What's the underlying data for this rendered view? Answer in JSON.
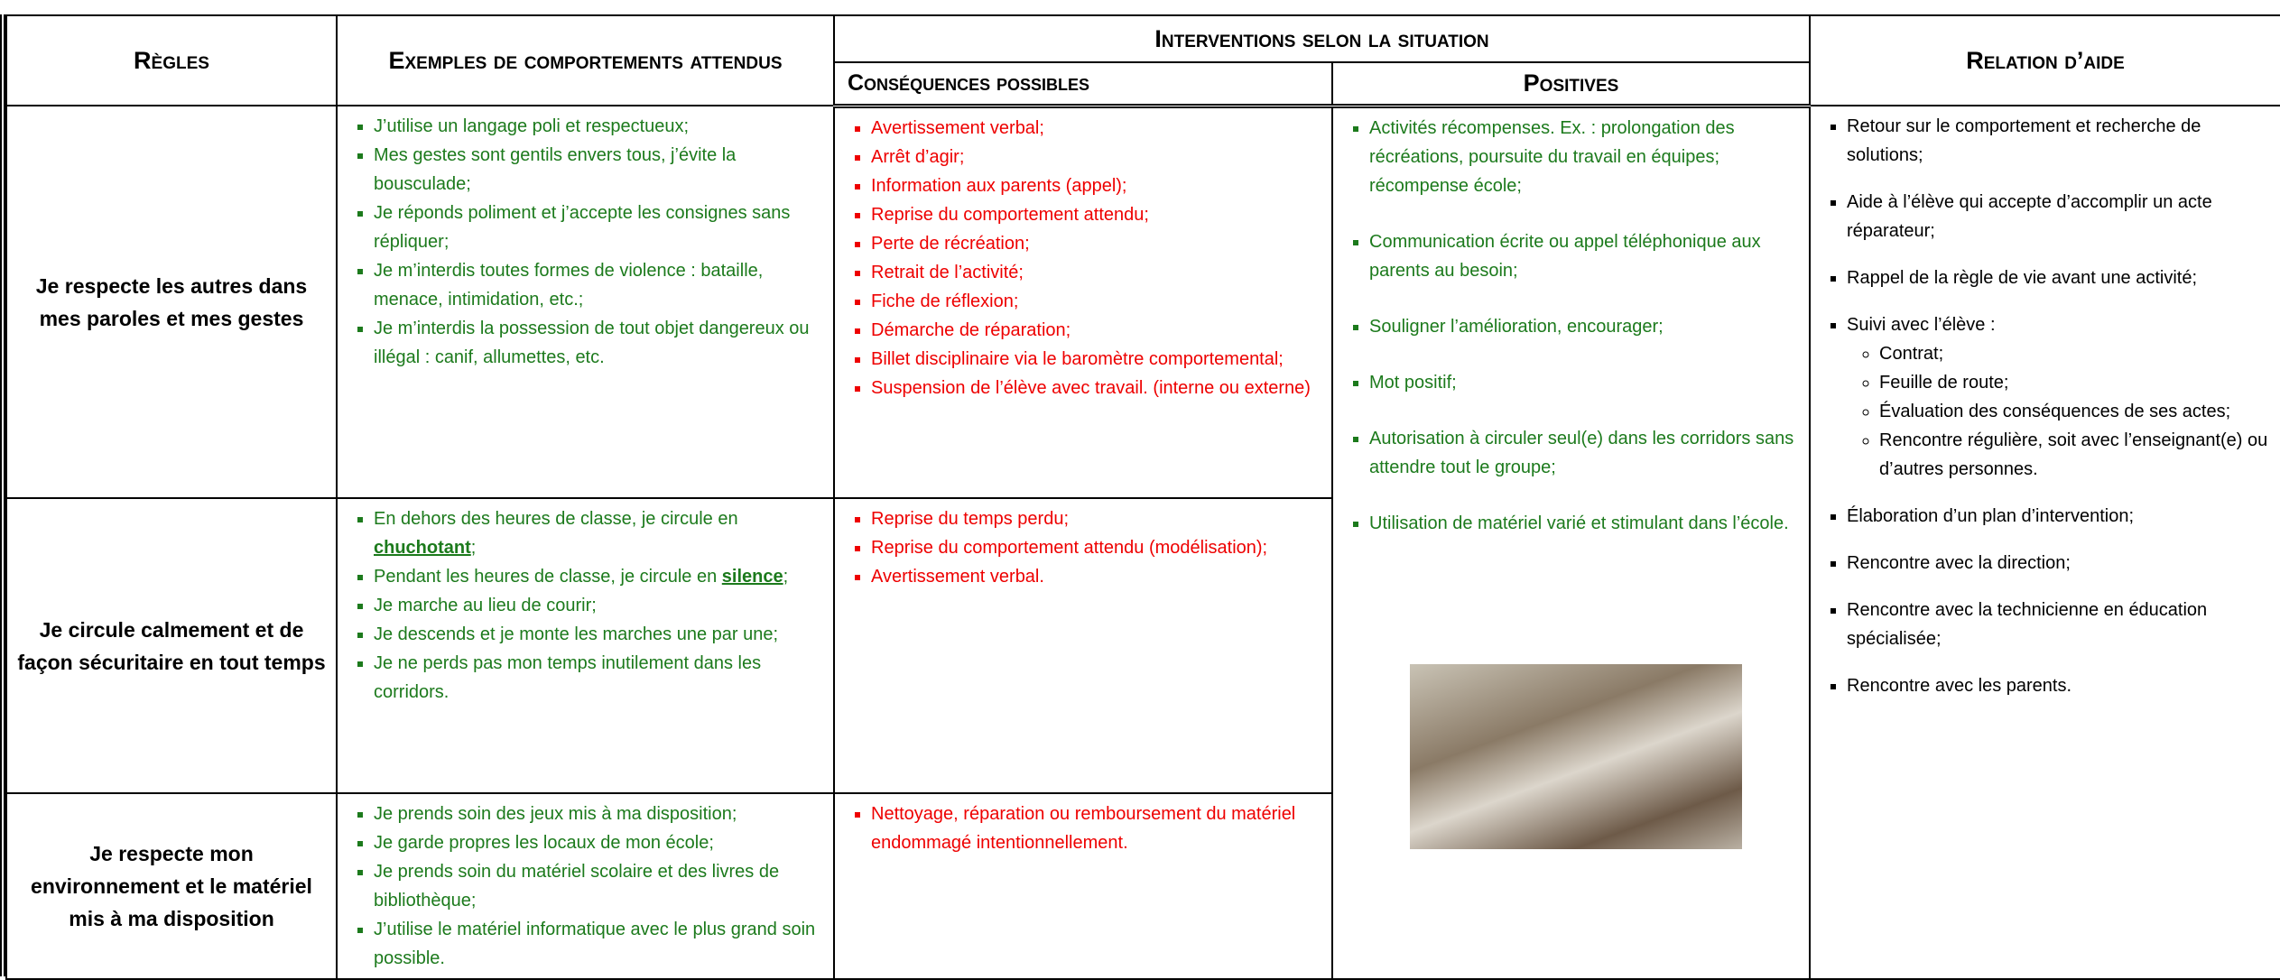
{
  "header": {
    "rules": "Règles",
    "examples": "Exemples de comportements attendus",
    "interventions": "Interventions selon la situation",
    "consequences": "Conséquences possibles",
    "positives": "Positives",
    "help": "Relation d’aide"
  },
  "rows": [
    {
      "rule": "Je respecte les autres dans mes paroles et mes gestes",
      "examples": [
        {
          "text": "J’utilise un langage poli et respectueux;"
        },
        {
          "text": "Mes gestes sont gentils envers tous, j’évite la bousculade;"
        },
        {
          "text": "Je réponds poliment et j’accepte les consignes sans répliquer;"
        },
        {
          "text": "Je m’interdis toutes formes de violence : bataille, menace, intimidation, etc.;"
        },
        {
          "text": "Je m’interdis la possession de tout objet dangereux ou illégal : canif, allumettes, etc."
        }
      ],
      "consequences": [
        "Avertissement verbal;",
        "Arrêt d’agir;",
        "Information aux parents (appel);",
        "Reprise du comportement attendu;",
        "Perte de récréation;",
        "Retrait de l’activité;",
        "Fiche de réflexion;",
        "Démarche de réparation;",
        "Billet disciplinaire via le baromètre comportemental;",
        "Suspension de l’élève avec travail. (interne ou externe)"
      ]
    },
    {
      "rule": "Je circule calmement et de façon sécuritaire en tout temps",
      "examples": [
        {
          "text": "En dehors des heures de classe, je circule en ",
          "strong": "chuchotant",
          "after": ";"
        },
        {
          "text": "Pendant les heures de classe, je circule en ",
          "strong": "silence",
          "after": ";"
        },
        {
          "text": "Je marche au lieu de courir;"
        },
        {
          "text": "Je descends et je monte les marches une par une;"
        },
        {
          "text": "Je ne perds pas mon temps inutilement dans les corridors."
        }
      ],
      "consequences": [
        "Reprise du temps perdu;",
        "Reprise du comportement attendu (modélisation);",
        "Avertissement verbal."
      ]
    },
    {
      "rule": "Je respecte mon environnement et le matériel mis à ma disposition",
      "examples": [
        {
          "text": "Je prends soin des jeux mis à ma disposition;"
        },
        {
          "text": "Je garde propres les locaux de mon école;"
        },
        {
          "text": "Je prends soin du matériel scolaire et des livres de bibliothèque;"
        },
        {
          "text": "J’utilise le matériel informatique avec le plus grand soin possible."
        }
      ],
      "consequences": [
        "Nettoyage, réparation ou remboursement du matériel endommagé intentionnellement."
      ]
    }
  ],
  "positives": [
    "Activités récompenses.  Ex. : prolongation des récréations, poursuite du travail en équipes; récompense école;",
    "Communication écrite ou appel téléphonique aux parents au besoin;",
    "Souligner l’amélioration, encourager;",
    "Mot positif;",
    "Autorisation à circuler seul(e) dans les corridors sans attendre tout le groupe;",
    "Utilisation de matériel varié et stimulant dans l’école."
  ],
  "help": [
    {
      "text": "Retour sur le comportement et recherche de solutions;"
    },
    {
      "text": "Aide à l’élève qui accepte d’accomplir un acte réparateur;"
    },
    {
      "text": "Rappel de la règle de vie avant une activité;"
    },
    {
      "text": "Suivi avec l’élève :",
      "sub": [
        "Contrat;",
        "Feuille de route;",
        "Évaluation des conséquences de ses actes;",
        "Rencontre régulière, soit avec l’enseignant(e) ou d’autres personnes."
      ]
    },
    {
      "text": "Élaboration d’un plan d’intervention;"
    },
    {
      "text": "Rencontre avec la direction;"
    },
    {
      "text": "Rencontre avec la technicienne en éducation spécialisée;"
    },
    {
      "text": "Rencontre avec les parents."
    }
  ]
}
